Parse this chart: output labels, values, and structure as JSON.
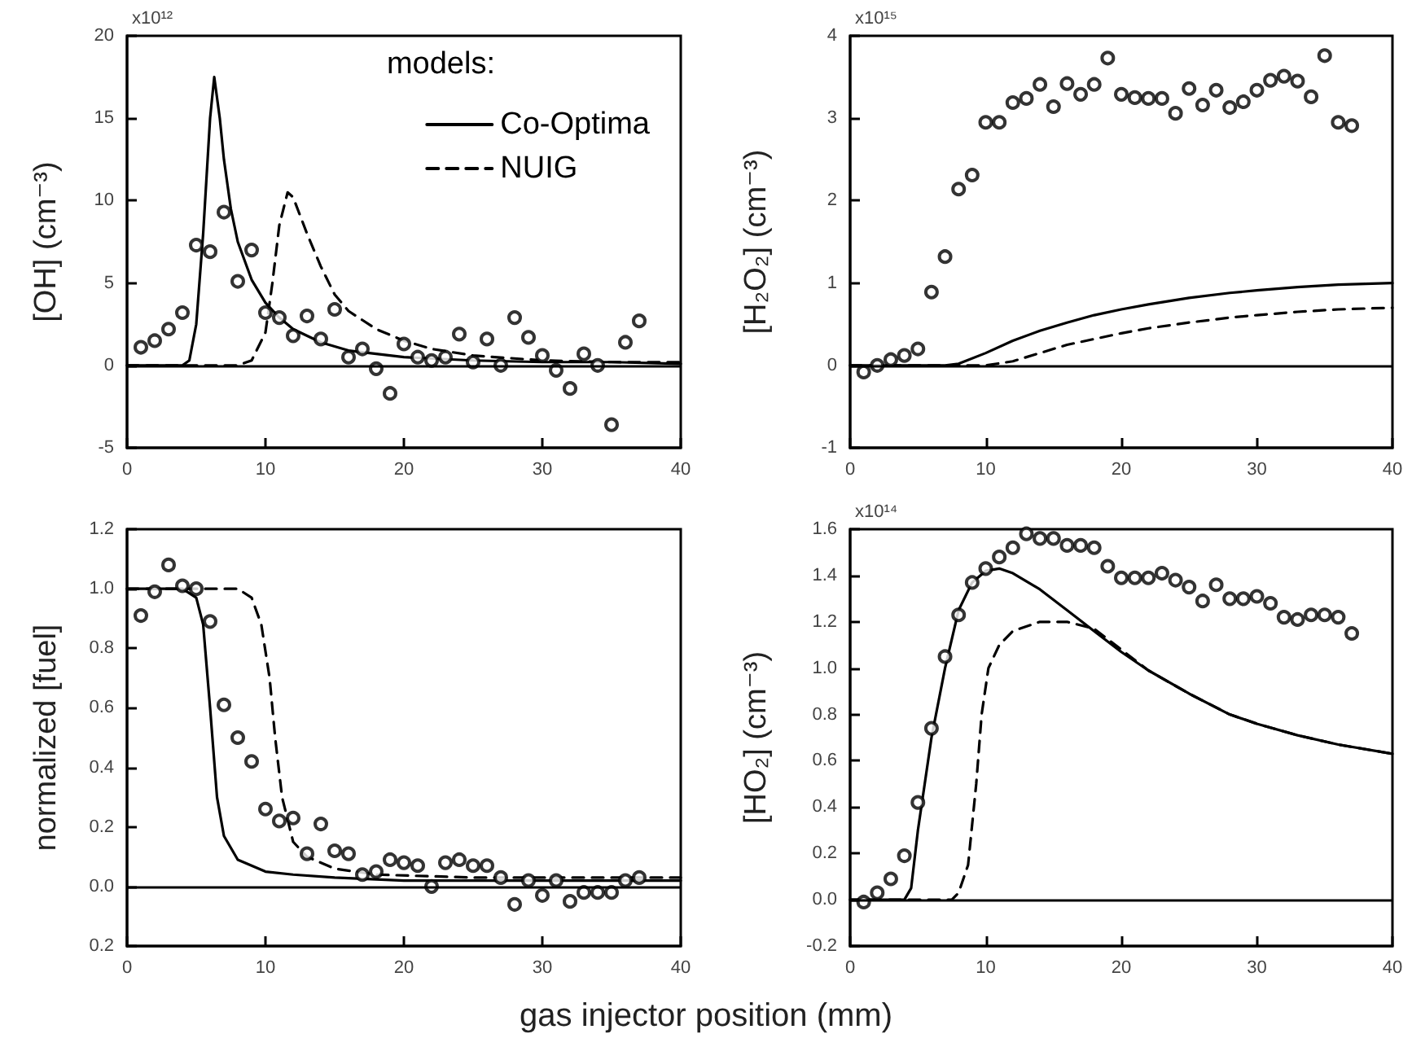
{
  "chart_data": [
    {
      "type": "line",
      "ylabel": "[OH] (cm⁻³)",
      "xlim": [
        0,
        40
      ],
      "xticks": [
        0,
        10,
        20,
        30,
        40
      ],
      "ylim": [
        -5,
        20
      ],
      "yticks": [
        -5,
        0,
        5,
        10,
        15,
        20
      ],
      "annotations": [
        "x10¹²"
      ],
      "legend": "top right",
      "legend_title": "models:",
      "grid": false,
      "ref_lines": [
        {
          "axis": "y",
          "value": 0,
          "color": "#000000"
        }
      ],
      "series": [
        {
          "name": "Co-Optima",
          "type": "line",
          "color": "#000000",
          "line_style": "solid",
          "marker": "none",
          "x": [
            0,
            4,
            4.5,
            5,
            5.5,
            6,
            6.3,
            6.7,
            7,
            7.5,
            8,
            9,
            10,
            11,
            12,
            14,
            16,
            18,
            20,
            25,
            30,
            35,
            40
          ],
          "values": [
            0,
            0,
            0.3,
            2.5,
            8,
            15,
            17.5,
            15,
            12.5,
            9.5,
            7.5,
            5.2,
            3.8,
            2.9,
            2.2,
            1.4,
            0.9,
            0.7,
            0.5,
            0.3,
            0.2,
            0.2,
            0.1
          ]
        },
        {
          "name": "NUIG",
          "type": "line",
          "color": "#000000",
          "line_style": "dashed",
          "marker": "none",
          "x": [
            0,
            8,
            9,
            10,
            10.5,
            11,
            11.6,
            12,
            13,
            14,
            15,
            16,
            18,
            20,
            22,
            25,
            30,
            35,
            40
          ],
          "values": [
            0,
            0,
            0.3,
            2,
            5,
            8.5,
            10.5,
            10.2,
            8,
            6,
            4.3,
            3.3,
            2.2,
            1.5,
            1.0,
            0.6,
            0.3,
            0.2,
            0.2
          ]
        },
        {
          "type": "scatter",
          "color": "#000000",
          "marker": "circle",
          "x": [
            1,
            2,
            3,
            4,
            5,
            6,
            7,
            8,
            9,
            10,
            11,
            12,
            13,
            14,
            15,
            16,
            17,
            18,
            19,
            20,
            21,
            22,
            23,
            24,
            25,
            26,
            27,
            28,
            29,
            30,
            31,
            32,
            33,
            34,
            35,
            36,
            37
          ],
          "values": [
            1.1,
            1.5,
            2.2,
            3.2,
            7.3,
            6.9,
            9.3,
            5.1,
            7.0,
            3.2,
            2.9,
            1.8,
            3.0,
            1.6,
            3.4,
            0.5,
            1.0,
            -0.2,
            -1.7,
            1.3,
            0.5,
            0.3,
            0.5,
            1.9,
            0.2,
            1.6,
            0,
            2.9,
            1.7,
            0.6,
            -0.3,
            -1.4,
            0.7,
            0,
            -3.6,
            1.4,
            2.7
          ]
        }
      ]
    },
    {
      "type": "line",
      "ylabel": "[H₂O₂] (cm⁻³)",
      "xlim": [
        0,
        40
      ],
      "xticks": [
        0,
        10,
        20,
        30,
        40
      ],
      "ylim": [
        -1,
        4
      ],
      "yticks": [
        -1,
        0,
        1,
        2,
        3,
        4
      ],
      "annotations": [
        "x10¹⁵"
      ],
      "grid": false,
      "ref_lines": [
        {
          "axis": "y",
          "value": 0,
          "color": "#000000"
        }
      ],
      "series": [
        {
          "type": "line",
          "color": "#000000",
          "line_style": "solid",
          "marker": "none",
          "x": [
            0,
            7,
            8,
            10,
            12,
            14,
            16,
            18,
            20,
            22,
            25,
            28,
            30,
            33,
            36,
            40
          ],
          "values": [
            0,
            0,
            0.02,
            0.15,
            0.3,
            0.42,
            0.52,
            0.61,
            0.68,
            0.74,
            0.82,
            0.88,
            0.91,
            0.95,
            0.98,
            1.0
          ]
        },
        {
          "type": "line",
          "color": "#000000",
          "line_style": "dashed",
          "marker": "none",
          "x": [
            0,
            10,
            12,
            14,
            16,
            18,
            20,
            22,
            25,
            28,
            30,
            33,
            36,
            40
          ],
          "values": [
            0,
            0,
            0.05,
            0.15,
            0.25,
            0.32,
            0.39,
            0.45,
            0.52,
            0.58,
            0.61,
            0.65,
            0.68,
            0.7
          ]
        },
        {
          "type": "scatter",
          "color": "#000000",
          "marker": "circle",
          "x": [
            1,
            2,
            3,
            4,
            5,
            6,
            7,
            8,
            9,
            10,
            11,
            12,
            13,
            14,
            15,
            16,
            17,
            18,
            19,
            20,
            21,
            22,
            23,
            24,
            25,
            26,
            27,
            28,
            29,
            30,
            31,
            32,
            33,
            34,
            35,
            36,
            37
          ],
          "values": [
            -0.08,
            0,
            0.07,
            0.12,
            0.2,
            0.89,
            1.32,
            2.14,
            2.31,
            2.95,
            2.95,
            3.19,
            3.24,
            3.41,
            3.14,
            3.42,
            3.29,
            3.41,
            3.73,
            3.29,
            3.25,
            3.24,
            3.24,
            3.06,
            3.36,
            3.16,
            3.34,
            3.13,
            3.2,
            3.34,
            3.46,
            3.51,
            3.45,
            3.26,
            3.76,
            2.95,
            2.91
          ]
        }
      ]
    },
    {
      "type": "line",
      "ylabel": "normalized [fuel]",
      "xlabel": "gas injector position (mm)",
      "xlim": [
        0,
        40
      ],
      "xticks": [
        0,
        10,
        20,
        30,
        40
      ],
      "ylim": [
        -0.2,
        1.2
      ],
      "yticks": [
        {
          "value": -0.2,
          "label": "0.2"
        },
        {
          "value": 0,
          "label": "0.0"
        },
        {
          "value": 0.2,
          "label": "0.2"
        },
        {
          "value": 0.4,
          "label": "0.4"
        },
        {
          "value": 0.6,
          "label": "0.6"
        },
        {
          "value": 0.8,
          "label": "0.8"
        },
        {
          "value": 1,
          "label": "1.0"
        },
        {
          "value": 1.2,
          "label": "1.2"
        }
      ],
      "grid": false,
      "ref_lines": [
        {
          "axis": "y",
          "value": 0,
          "color": "#000000"
        }
      ],
      "series": [
        {
          "type": "line",
          "color": "#000000",
          "line_style": "solid",
          "marker": "none",
          "x": [
            0,
            4,
            5,
            5.5,
            6,
            6.5,
            7,
            8,
            10,
            12,
            15,
            20,
            30,
            40
          ],
          "values": [
            1,
            1,
            0.97,
            0.88,
            0.6,
            0.3,
            0.17,
            0.09,
            0.05,
            0.04,
            0.03,
            0.02,
            0.02,
            0.02
          ]
        },
        {
          "type": "line",
          "color": "#000000",
          "line_style": "dashed",
          "marker": "none",
          "x": [
            0,
            8,
            9,
            9.7,
            10.3,
            10.7,
            11.2,
            12,
            13,
            15,
            18,
            25,
            40
          ],
          "values": [
            1,
            1,
            0.97,
            0.88,
            0.7,
            0.5,
            0.3,
            0.15,
            0.1,
            0.06,
            0.04,
            0.03,
            0.03
          ]
        },
        {
          "type": "scatter",
          "color": "#000000",
          "marker": "circle",
          "x": [
            1,
            2,
            3,
            4,
            5,
            6,
            7,
            8,
            9,
            10,
            11,
            12,
            13,
            14,
            15,
            16,
            17,
            18,
            19,
            20,
            21,
            22,
            23,
            24,
            25,
            26,
            27,
            28,
            29,
            30,
            31,
            32,
            33,
            34,
            35,
            36,
            37
          ],
          "values": [
            0.91,
            0.99,
            1.08,
            1.01,
            1.0,
            0.89,
            0.61,
            0.5,
            0.42,
            0.26,
            0.22,
            0.23,
            0.11,
            0.21,
            0.12,
            0.11,
            0.04,
            0.05,
            0.09,
            0.08,
            0.07,
            0,
            0.08,
            0.09,
            0.07,
            0.07,
            0.03,
            -0.06,
            0.02,
            -0.03,
            0.02,
            -0.05,
            -0.02,
            -0.02,
            -0.02,
            0.02,
            0.03
          ]
        }
      ]
    },
    {
      "type": "line",
      "ylabel": "[HO₂] (cm⁻³)",
      "xlim": [
        0,
        40
      ],
      "xticks": [
        0,
        10,
        20,
        30,
        40
      ],
      "ylim": [
        -0.2,
        1.6
      ],
      "yticks": [
        {
          "value": -0.2,
          "label": "-0.2"
        },
        {
          "value": 0,
          "label": "0.0"
        },
        {
          "value": 0.2,
          "label": "0.2"
        },
        {
          "value": 0.4,
          "label": "0.4"
        },
        {
          "value": 0.6,
          "label": "0.6"
        },
        {
          "value": 0.8,
          "label": "0.8"
        },
        {
          "value": 1,
          "label": "1.0"
        },
        {
          "value": 1.2,
          "label": "1.2"
        },
        {
          "value": 1.4,
          "label": "1.4"
        },
        {
          "value": 1.6,
          "label": "1.6"
        }
      ],
      "annotations": [
        "x10¹⁴"
      ],
      "grid": false,
      "ref_lines": [
        {
          "axis": "y",
          "value": 0,
          "color": "#000000"
        }
      ],
      "series": [
        {
          "type": "line",
          "color": "#000000",
          "line_style": "solid",
          "marker": "none",
          "x": [
            0,
            4,
            4.5,
            5,
            6,
            7,
            8,
            9,
            10,
            11,
            12,
            14,
            16,
            18,
            20,
            22,
            25,
            28,
            30,
            33,
            36,
            40
          ],
          "values": [
            0,
            0,
            0.05,
            0.3,
            0.7,
            1.0,
            1.25,
            1.37,
            1.42,
            1.43,
            1.41,
            1.34,
            1.25,
            1.16,
            1.07,
            0.99,
            0.89,
            0.8,
            0.76,
            0.71,
            0.67,
            0.63
          ]
        },
        {
          "type": "line",
          "color": "#000000",
          "line_style": "dashed",
          "marker": "none",
          "x": [
            0,
            7.5,
            8,
            8.7,
            9.3,
            9.7,
            10.2,
            11,
            12,
            14,
            16,
            18,
            20,
            22,
            25,
            28,
            30,
            33,
            36,
            40
          ],
          "values": [
            0,
            0,
            0.03,
            0.15,
            0.5,
            0.8,
            1.0,
            1.1,
            1.16,
            1.2,
            1.2,
            1.17,
            1.08,
            0.99,
            0.89,
            0.8,
            0.76,
            0.71,
            0.67,
            0.63
          ]
        },
        {
          "type": "scatter",
          "color": "#000000",
          "marker": "circle",
          "x": [
            1,
            2,
            3,
            4,
            5,
            6,
            7,
            8,
            9,
            10,
            11,
            12,
            13,
            14,
            15,
            16,
            17,
            18,
            19,
            20,
            21,
            22,
            23,
            24,
            25,
            26,
            27,
            28,
            29,
            30,
            31,
            32,
            33,
            34,
            35,
            36,
            37
          ],
          "values": [
            -0.01,
            0.03,
            0.09,
            0.19,
            0.42,
            0.74,
            1.05,
            1.23,
            1.37,
            1.43,
            1.48,
            1.52,
            1.58,
            1.56,
            1.56,
            1.53,
            1.53,
            1.52,
            1.44,
            1.39,
            1.39,
            1.39,
            1.41,
            1.38,
            1.35,
            1.29,
            1.36,
            1.3,
            1.3,
            1.31,
            1.28,
            1.22,
            1.21,
            1.23,
            1.23,
            1.22,
            1.15
          ]
        }
      ]
    }
  ]
}
